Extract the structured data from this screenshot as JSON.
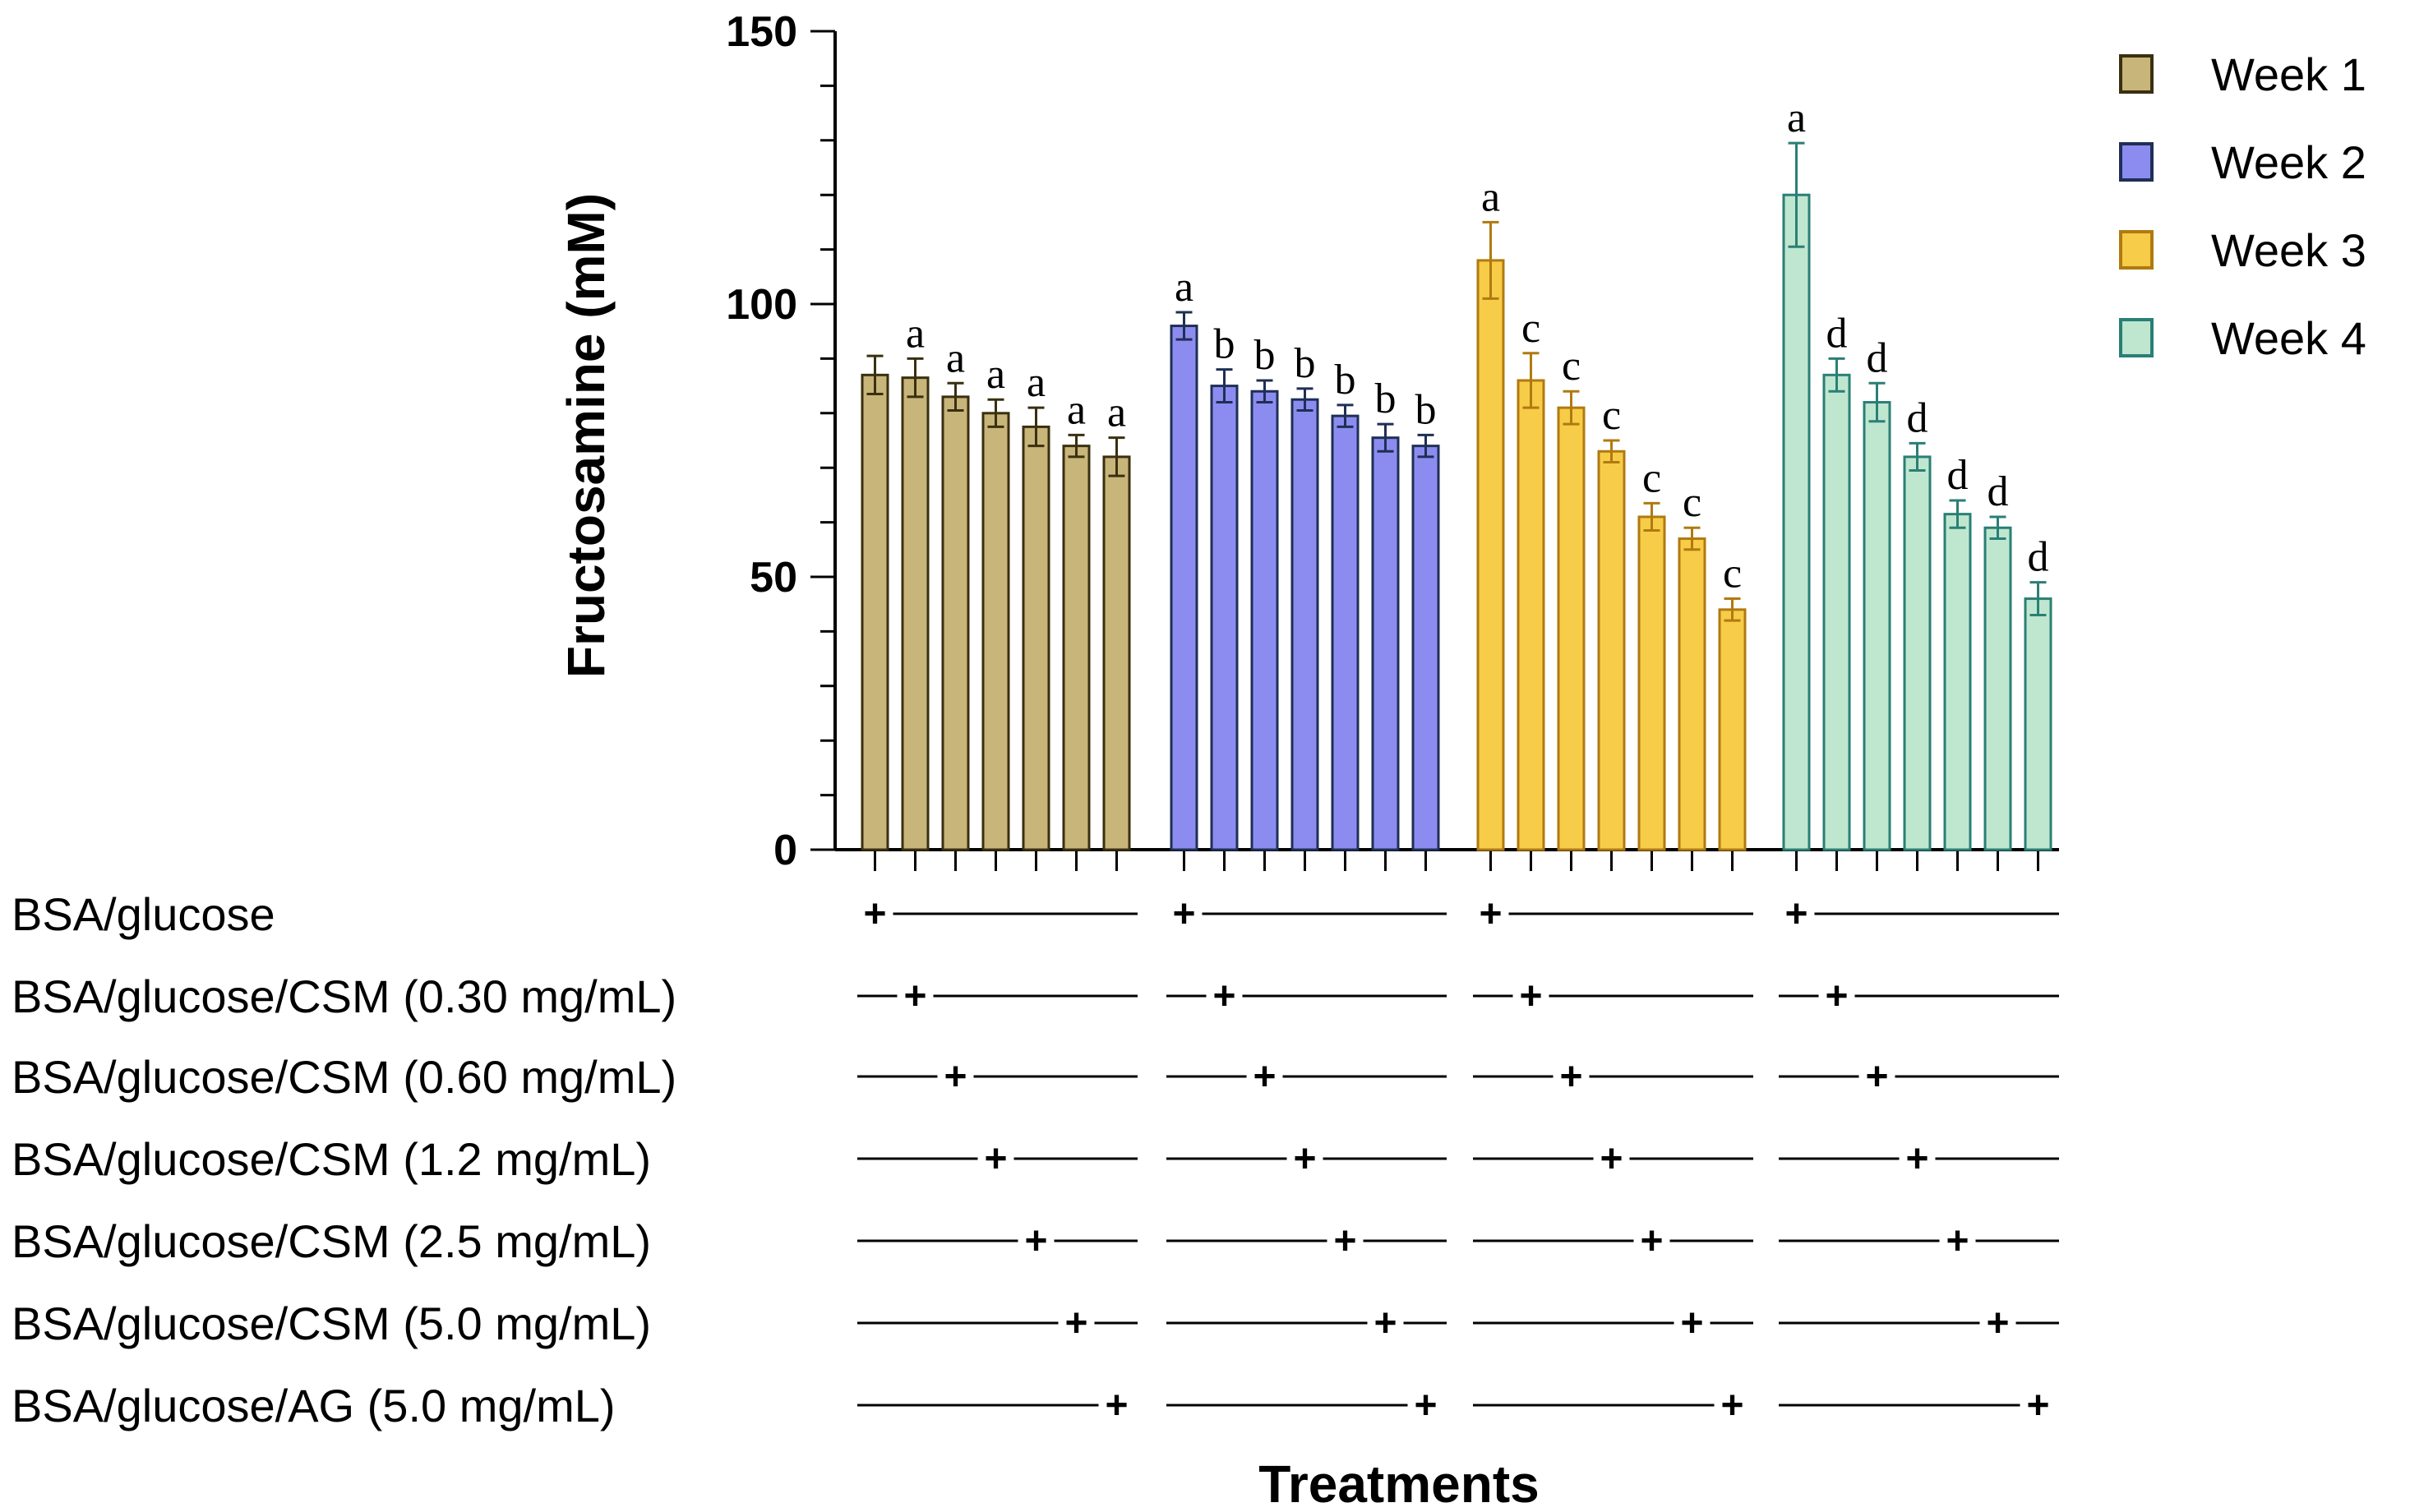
{
  "chart_data": {
    "type": "bar",
    "title": "",
    "ylabel": "Fructosamine (mM)",
    "xlabel": "Treatments",
    "ylim": [
      0,
      150
    ],
    "yticks": [
      0,
      50,
      100,
      150
    ],
    "legend_position": "top-right",
    "series": [
      {
        "name": "Week 1",
        "color": "#c8b57a",
        "stroke": "#3a2f10",
        "values": [
          87,
          86.5,
          83,
          80,
          77.5,
          74,
          72
        ],
        "errors": [
          3.5,
          3.5,
          2.5,
          2.5,
          3.5,
          2,
          3.5
        ],
        "letters": [
          "",
          "a",
          "a",
          "a",
          "a",
          "a",
          "a"
        ]
      },
      {
        "name": "Week 2",
        "color": "#8c8cf0",
        "stroke": "#1f2f55",
        "values": [
          96,
          85,
          84,
          82.5,
          79.5,
          75.5,
          74
        ],
        "errors": [
          2.5,
          3,
          2,
          2,
          2,
          2.5,
          2
        ],
        "letters": [
          "a",
          "b",
          "b",
          "b",
          "b",
          "b",
          "b"
        ]
      },
      {
        "name": "Week 3",
        "color": "#f7cc48",
        "stroke": "#b07a10",
        "values": [
          108,
          86,
          81,
          73,
          61,
          57,
          44
        ],
        "errors": [
          7,
          5,
          3,
          2,
          2.5,
          2,
          2
        ],
        "letters": [
          "a",
          "c",
          "c",
          "c",
          "c",
          "c",
          "c"
        ]
      },
      {
        "name": "Week 4",
        "color": "#bfe7d0",
        "stroke": "#2a7f75",
        "values": [
          120,
          87,
          82,
          72,
          61.5,
          59,
          46
        ],
        "errors": [
          9.5,
          3,
          3.5,
          2.5,
          2.5,
          2,
          3
        ],
        "letters": [
          "a",
          "d",
          "d",
          "d",
          "d",
          "d",
          "d"
        ]
      }
    ],
    "treatments": [
      "BSA/glucose",
      "BSA/glucose/CSM (0.30 mg/mL)",
      "BSA/glucose/CSM (0.60 mg/mL)",
      "BSA/glucose/CSM (1.2 mg/mL)",
      "BSA/glucose/CSM (2.5 mg/mL)",
      "BSA/glucose/CSM (5.0 mg/mL)",
      "BSA/glucose/AG  (5.0 mg/mL)"
    ],
    "plus_symbol": "+"
  }
}
